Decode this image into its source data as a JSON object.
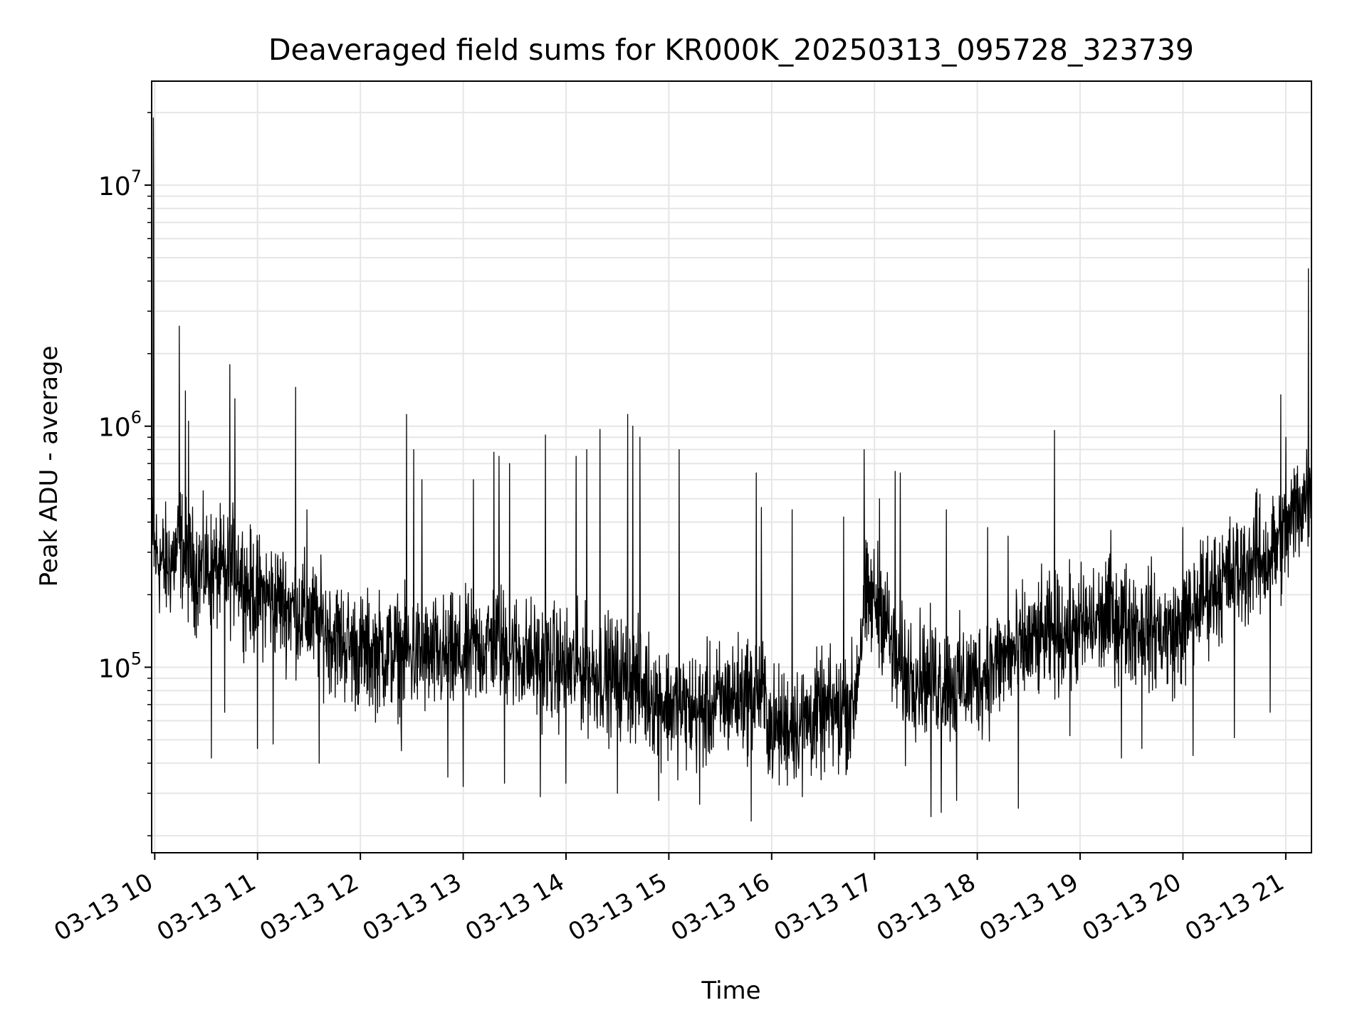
{
  "chart_data": {
    "type": "line",
    "title": "Deaveraged field sums for KR000K_20250313_095728_323739",
    "xlabel": "Time",
    "ylabel": "Peak ADU - average",
    "y_scale": "log",
    "y_tick_base": "10",
    "y_tick_labels": [
      {
        "value": 100000,
        "exp": "5"
      },
      {
        "value": 1000000,
        "exp": "6"
      },
      {
        "value": 10000000,
        "exp": "7"
      }
    ],
    "x_tick_labels": [
      "03-13 10",
      "03-13 11",
      "03-13 12",
      "03-13 13",
      "03-13 14",
      "03-13 15",
      "03-13 16",
      "03-13 17",
      "03-13 18",
      "03-13 19",
      "03-13 20",
      "03-13 21"
    ],
    "x_tick_hours": [
      10,
      11,
      12,
      13,
      14,
      15,
      16,
      17,
      18,
      19,
      20,
      21
    ],
    "xlim_hours": [
      9.97,
      21.25
    ],
    "ylim": [
      17000,
      27000000
    ],
    "grid": true,
    "line_color": "#000000",
    "series": [
      {
        "x_hours": [
          9.97,
          10.0,
          10.1,
          10.2,
          10.25,
          10.3,
          10.4,
          10.5,
          10.6,
          10.7,
          10.8,
          10.9,
          11.0,
          11.2,
          11.4,
          11.6,
          11.8,
          12.0,
          12.3,
          12.6,
          13.0,
          13.3,
          13.6,
          14.0,
          14.3,
          14.6,
          15.0,
          15.3,
          15.6,
          15.9,
          16.0,
          16.3,
          16.6,
          16.8,
          16.9,
          17.0,
          17.1,
          17.2,
          17.4,
          17.6,
          17.8,
          18.0,
          18.3,
          18.6,
          19.0,
          19.3,
          19.6,
          19.9,
          20.0,
          20.2,
          20.4,
          20.6,
          20.8,
          21.0,
          21.1,
          21.2,
          21.25
        ],
        "y_median": [
          320000,
          300000,
          260000,
          290000,
          330000,
          280000,
          250000,
          260000,
          250000,
          240000,
          270000,
          210000,
          200000,
          190000,
          170000,
          150000,
          130000,
          115000,
          115000,
          110000,
          110000,
          130000,
          110000,
          100000,
          95000,
          90000,
          70000,
          65000,
          75000,
          80000,
          55000,
          60000,
          65000,
          70000,
          180000,
          190000,
          170000,
          100000,
          95000,
          90000,
          85000,
          90000,
          110000,
          130000,
          145000,
          160000,
          150000,
          135000,
          145000,
          200000,
          230000,
          260000,
          280000,
          350000,
          450000,
          520000,
          500000
        ],
        "spikes": [
          {
            "h": 9.985,
            "y": 19000000
          },
          {
            "h": 9.99,
            "y": 8000000
          },
          {
            "h": 10.24,
            "y": 2600000
          },
          {
            "h": 10.3,
            "y": 1400000
          },
          {
            "h": 10.33,
            "y": 1050000
          },
          {
            "h": 10.73,
            "y": 1800000
          },
          {
            "h": 10.78,
            "y": 1300000
          },
          {
            "h": 11.37,
            "y": 1450000
          },
          {
            "h": 11.48,
            "y": 450000
          },
          {
            "h": 12.45,
            "y": 1120000
          },
          {
            "h": 12.52,
            "y": 800000
          },
          {
            "h": 12.6,
            "y": 600000
          },
          {
            "h": 13.1,
            "y": 600000
          },
          {
            "h": 13.3,
            "y": 780000
          },
          {
            "h": 13.35,
            "y": 750000
          },
          {
            "h": 13.45,
            "y": 700000
          },
          {
            "h": 13.8,
            "y": 920000
          },
          {
            "h": 14.1,
            "y": 750000
          },
          {
            "h": 14.2,
            "y": 800000
          },
          {
            "h": 14.33,
            "y": 970000
          },
          {
            "h": 14.6,
            "y": 1120000
          },
          {
            "h": 14.65,
            "y": 1000000
          },
          {
            "h": 14.72,
            "y": 900000
          },
          {
            "h": 15.1,
            "y": 800000
          },
          {
            "h": 15.3,
            "y": 650000
          },
          {
            "h": 15.8,
            "y": 650000
          },
          {
            "h": 15.85,
            "y": 640000
          },
          {
            "h": 15.9,
            "y": 460000
          },
          {
            "h": 16.2,
            "y": 450000
          },
          {
            "h": 16.7,
            "y": 420000
          },
          {
            "h": 16.9,
            "y": 800000
          },
          {
            "h": 17.05,
            "y": 500000
          },
          {
            "h": 17.2,
            "y": 650000
          },
          {
            "h": 17.25,
            "y": 640000
          },
          {
            "h": 17.7,
            "y": 450000
          },
          {
            "h": 18.1,
            "y": 380000
          },
          {
            "h": 18.3,
            "y": 350000
          },
          {
            "h": 18.75,
            "y": 960000
          },
          {
            "h": 18.9,
            "y": 320000
          },
          {
            "h": 19.3,
            "y": 370000
          },
          {
            "h": 20.0,
            "y": 380000
          },
          {
            "h": 20.5,
            "y": 450000
          },
          {
            "h": 20.72,
            "y": 550000
          },
          {
            "h": 20.95,
            "y": 1350000
          },
          {
            "h": 21.0,
            "y": 900000
          },
          {
            "h": 21.22,
            "y": 4500000
          }
        ],
        "dips": [
          {
            "h": 10.55,
            "y": 42000
          },
          {
            "h": 10.68,
            "y": 65000
          },
          {
            "h": 11.0,
            "y": 46000
          },
          {
            "h": 11.15,
            "y": 48000
          },
          {
            "h": 11.6,
            "y": 40000
          },
          {
            "h": 12.4,
            "y": 45000
          },
          {
            "h": 12.85,
            "y": 35000
          },
          {
            "h": 13.0,
            "y": 32000
          },
          {
            "h": 13.4,
            "y": 33000
          },
          {
            "h": 13.75,
            "y": 29000
          },
          {
            "h": 14.0,
            "y": 33000
          },
          {
            "h": 14.5,
            "y": 30000
          },
          {
            "h": 14.9,
            "y": 28000
          },
          {
            "h": 15.3,
            "y": 27000
          },
          {
            "h": 15.8,
            "y": 23000
          },
          {
            "h": 16.3,
            "y": 29000
          },
          {
            "h": 16.65,
            "y": 36000
          },
          {
            "h": 17.3,
            "y": 39000
          },
          {
            "h": 17.55,
            "y": 24000
          },
          {
            "h": 17.65,
            "y": 25000
          },
          {
            "h": 17.8,
            "y": 28000
          },
          {
            "h": 18.4,
            "y": 26000
          },
          {
            "h": 18.9,
            "y": 52000
          },
          {
            "h": 19.4,
            "y": 42000
          },
          {
            "h": 19.6,
            "y": 46000
          },
          {
            "h": 20.1,
            "y": 43000
          },
          {
            "h": 20.5,
            "y": 51000
          },
          {
            "h": 20.85,
            "y": 65000
          }
        ]
      }
    ]
  }
}
